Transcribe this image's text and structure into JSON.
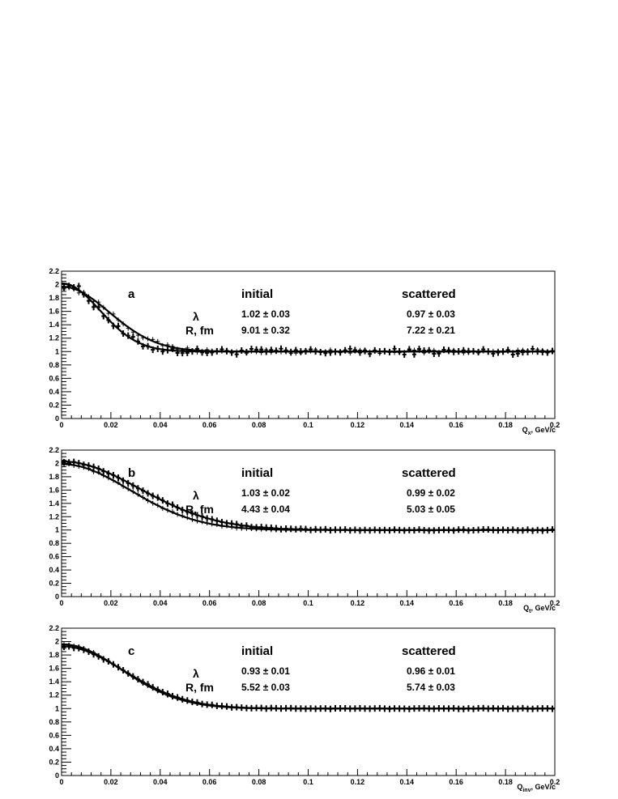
{
  "chart_data": [
    {
      "type": "scatter",
      "panel": "a",
      "xlabel": "Q",
      "xlabel_sub": "x",
      "xlabel_unit": ", GeV/c",
      "xlim": [
        0,
        0.2
      ],
      "ylim": [
        0,
        2.2
      ],
      "xticks": [
        "0",
        "0.02",
        "0.04",
        "0.06",
        "0.08",
        "0.1",
        "0.12",
        "0.14",
        "0.16",
        "0.18",
        "0.2"
      ],
      "yticks": [
        "0",
        "0.2",
        "0.4",
        "0.6",
        "0.8",
        "1",
        "1.2",
        "1.4",
        "1.6",
        "1.8",
        "2",
        "2.2"
      ],
      "columns": [
        "initial",
        "scattered"
      ],
      "row_labels": [
        "λ",
        "R, fm"
      ],
      "params": {
        "initial": {
          "lambda": "1.02",
          "lambda_err": "0.03",
          "R": "9.01",
          "R_err": "0.32"
        },
        "scattered": {
          "lambda": "0.97",
          "lambda_err": "0.03",
          "R": "7.22",
          "R_err": "0.21"
        }
      },
      "series": [
        {
          "lambda": 1.02,
          "R": 9.01,
          "noise": 0.045
        },
        {
          "lambda": 0.97,
          "R": 7.22,
          "noise": 0.028
        }
      ]
    },
    {
      "type": "scatter",
      "panel": "b",
      "xlabel": "Q",
      "xlabel_sub": "t",
      "xlabel_unit": ", GeV/c",
      "xlim": [
        0,
        0.2
      ],
      "ylim": [
        0,
        2.2
      ],
      "xticks": [
        "0",
        "0.02",
        "0.04",
        "0.06",
        "0.08",
        "0.1",
        "0.12",
        "0.14",
        "0.16",
        "0.18",
        "0.2"
      ],
      "yticks": [
        "0",
        "0.2",
        "0.4",
        "0.6",
        "0.8",
        "1",
        "1.2",
        "1.4",
        "1.6",
        "1.8",
        "2",
        "2.2"
      ],
      "columns": [
        "initial",
        "scattered"
      ],
      "row_labels": [
        "λ",
        "R, fm"
      ],
      "params": {
        "initial": {
          "lambda": "1.03",
          "lambda_err": "0.02",
          "R": "4.43",
          "R_err": "0.04"
        },
        "scattered": {
          "lambda": "0.99",
          "lambda_err": "0.02",
          "R": "5.03",
          "R_err": "0.05"
        }
      },
      "series": [
        {
          "lambda": 1.03,
          "R": 4.43,
          "noise": 0.01
        },
        {
          "lambda": 0.99,
          "R": 5.03,
          "noise": 0.01
        }
      ]
    },
    {
      "type": "scatter",
      "panel": "c",
      "xlabel": "Q",
      "xlabel_sub": "inv",
      "xlabel_unit": ", GeV/c",
      "xlim": [
        0,
        0.2
      ],
      "ylim": [
        0,
        2.2
      ],
      "xticks": [
        "0",
        "0.02",
        "0.04",
        "0.06",
        "0.08",
        "0.1",
        "0.12",
        "0.14",
        "0.16",
        "0.18",
        "0.2"
      ],
      "yticks": [
        "0",
        "0.2",
        "0.4",
        "0.6",
        "0.8",
        "1",
        "1.2",
        "1.4",
        "1.6",
        "1.8",
        "2",
        "2.2"
      ],
      "columns": [
        "initial",
        "scattered"
      ],
      "row_labels": [
        "λ",
        "R, fm"
      ],
      "params": {
        "initial": {
          "lambda": "0.93",
          "lambda_err": "0.01",
          "R": "5.52",
          "R_err": "0.03"
        },
        "scattered": {
          "lambda": "0.96",
          "lambda_err": "0.01",
          "R": "5.74",
          "R_err": "0.03"
        }
      },
      "series": [
        {
          "lambda": 0.93,
          "R": 5.52,
          "noise": 0.006
        },
        {
          "lambda": 0.96,
          "R": 5.74,
          "noise": 0.006
        }
      ]
    }
  ]
}
